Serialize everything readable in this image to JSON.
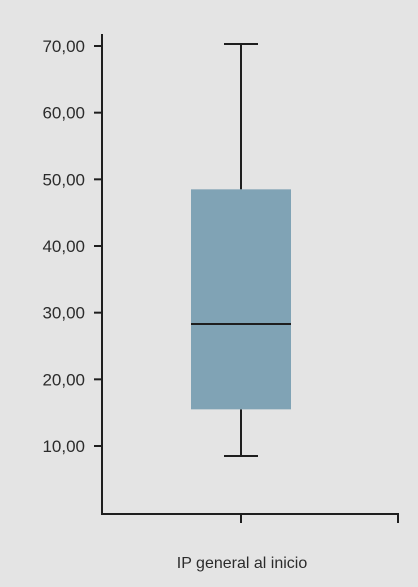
{
  "chart_data": {
    "type": "box",
    "categories": [
      "IP general al inicio"
    ],
    "xlabel": "",
    "ylabel": "",
    "ylim": [
      0,
      70
    ],
    "yticks": [
      10,
      20,
      30,
      40,
      50,
      60,
      70
    ],
    "ytick_labels": [
      "10,00",
      "20,00",
      "30,00",
      "40,00",
      "50,00",
      "60,00",
      "70,00"
    ],
    "grid": false,
    "series": [
      {
        "box": {
          "min": 8.5,
          "q1": 15.5,
          "median": 28.3,
          "q3": 48.5,
          "max": 70.3
        }
      }
    ]
  },
  "colors": {
    "background": "#e4e4e4",
    "box_fill": "#80a3b5",
    "lines": "#1e1e1e",
    "text": "#2b2b2b"
  }
}
